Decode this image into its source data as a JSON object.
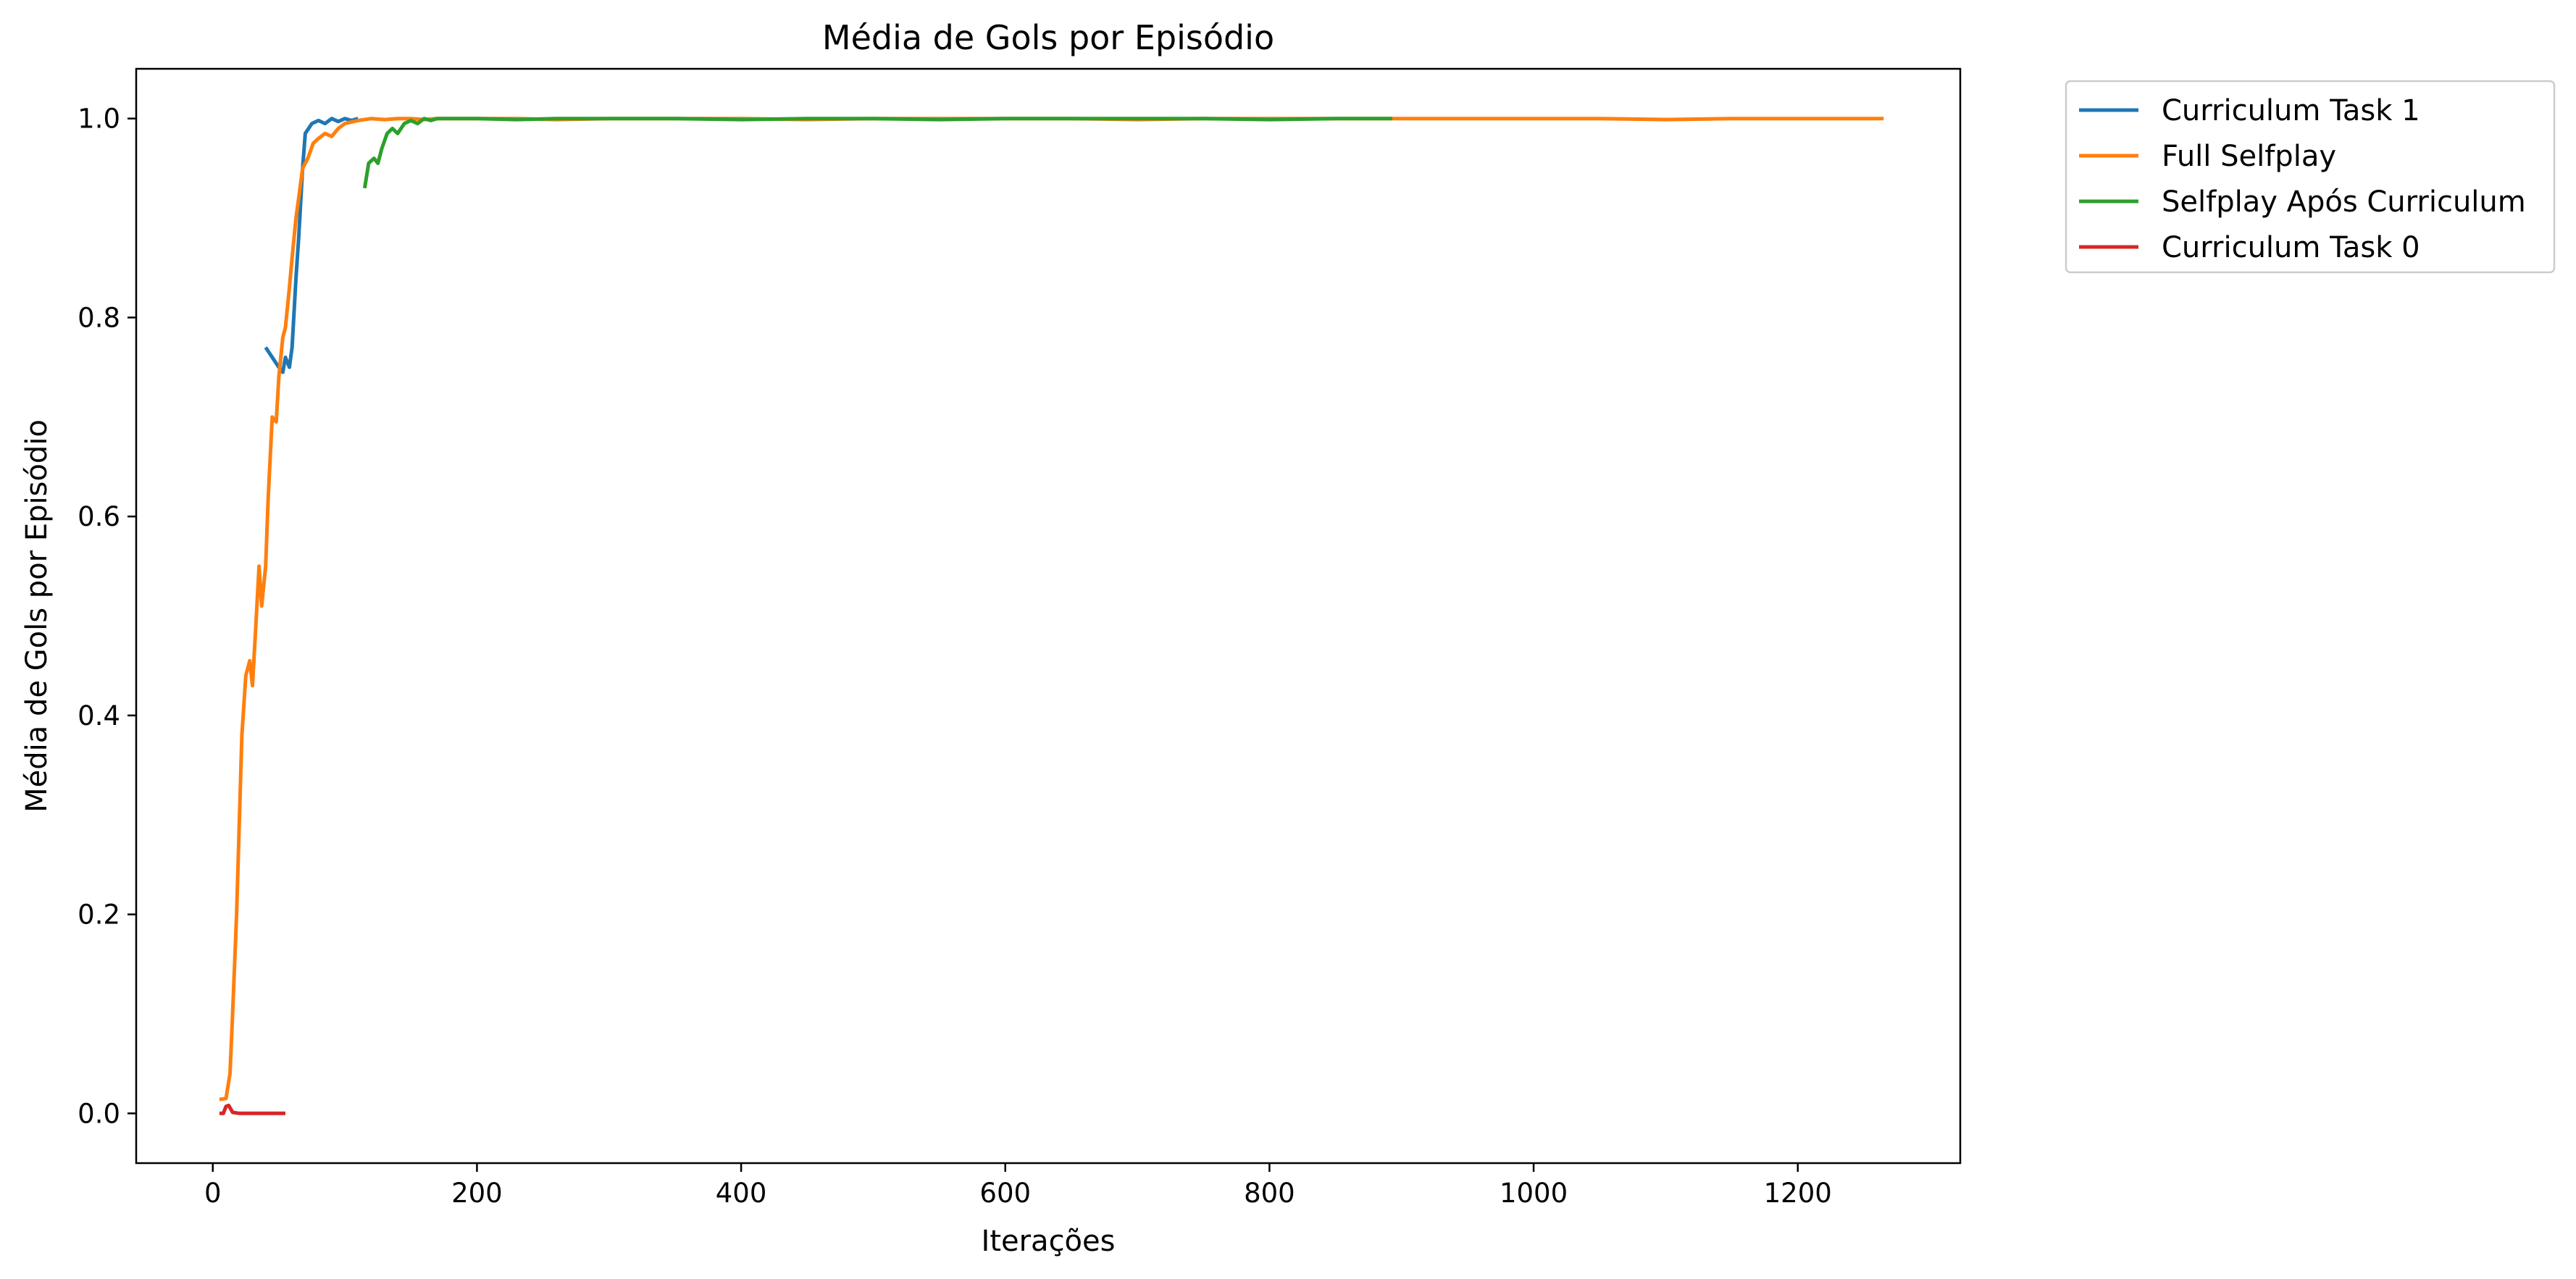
{
  "chart_data": {
    "type": "line",
    "title": "Média de Gols por Episódio",
    "xlabel": "Iterações",
    "ylabel": "Média de Gols por Episódio",
    "xlim": [
      -58,
      1323
    ],
    "ylim": [
      -0.05,
      1.05
    ],
    "xticks": [
      0,
      200,
      400,
      600,
      800,
      1000,
      1200
    ],
    "yticks": [
      0.0,
      0.2,
      0.4,
      0.6,
      0.8,
      1.0
    ],
    "xtick_labels": [
      "0",
      "200",
      "400",
      "600",
      "800",
      "1000",
      "1200"
    ],
    "ytick_labels": [
      "0.0",
      "0.2",
      "0.4",
      "0.6",
      "0.8",
      "1.0"
    ],
    "grid": false,
    "legend_position": "outside-top-right",
    "series": [
      {
        "name": "Curriculum Task 1",
        "color": "#1f77b4",
        "x": [
          40,
          45,
          50,
          53,
          55,
          58,
          60,
          63,
          65,
          68,
          70,
          75,
          80,
          85,
          90,
          95,
          100,
          105,
          110
        ],
        "y": [
          0.77,
          0.76,
          0.75,
          0.745,
          0.76,
          0.75,
          0.77,
          0.84,
          0.88,
          0.95,
          0.985,
          0.995,
          0.998,
          0.995,
          1.0,
          0.997,
          1.0,
          0.998,
          1.0
        ]
      },
      {
        "name": "Full Selfplay",
        "color": "#ff7f0e",
        "x": [
          5,
          10,
          13,
          15,
          18,
          22,
          25,
          28,
          30,
          33,
          35,
          37,
          40,
          42,
          45,
          48,
          50,
          53,
          55,
          58,
          60,
          63,
          65,
          68,
          72,
          76,
          80,
          85,
          90,
          95,
          100,
          110,
          120,
          130,
          140,
          150,
          160,
          170,
          180,
          200,
          230,
          260,
          300,
          350,
          400,
          450,
          500,
          550,
          600,
          650,
          700,
          750,
          800,
          850,
          900,
          950,
          1000,
          1050,
          1100,
          1150,
          1200,
          1265
        ],
        "y": [
          0.014,
          0.015,
          0.04,
          0.1,
          0.2,
          0.38,
          0.44,
          0.455,
          0.43,
          0.5,
          0.55,
          0.51,
          0.55,
          0.62,
          0.7,
          0.695,
          0.74,
          0.78,
          0.79,
          0.83,
          0.86,
          0.9,
          0.92,
          0.95,
          0.96,
          0.975,
          0.98,
          0.985,
          0.982,
          0.99,
          0.995,
          0.998,
          1.0,
          0.999,
          1.0,
          1.0,
          0.999,
          1.0,
          1.0,
          1.0,
          1.0,
          0.999,
          1.0,
          1.0,
          1.0,
          0.999,
          1.0,
          1.0,
          1.0,
          1.0,
          0.999,
          1.0,
          1.0,
          1.0,
          1.0,
          1.0,
          1.0,
          1.0,
          0.999,
          1.0,
          1.0,
          1.0
        ]
      },
      {
        "name": "Selfplay Após Curriculum",
        "color": "#2ca02c",
        "x": [
          115,
          118,
          122,
          125,
          128,
          132,
          136,
          140,
          145,
          150,
          155,
          160,
          165,
          170,
          180,
          200,
          230,
          260,
          300,
          350,
          400,
          450,
          500,
          550,
          600,
          650,
          700,
          750,
          800,
          850,
          893
        ],
        "y": [
          0.93,
          0.955,
          0.96,
          0.955,
          0.97,
          0.985,
          0.99,
          0.985,
          0.995,
          0.998,
          0.995,
          1.0,
          0.998,
          1.0,
          1.0,
          1.0,
          0.999,
          1.0,
          1.0,
          1.0,
          0.999,
          1.0,
          1.0,
          0.999,
          1.0,
          1.0,
          1.0,
          1.0,
          0.999,
          1.0,
          1.0
        ]
      },
      {
        "name": "Curriculum Task 0",
        "color": "#d62728",
        "x": [
          5,
          8,
          10,
          12,
          15,
          20,
          30,
          40,
          55
        ],
        "y": [
          0.0,
          0.0,
          0.007,
          0.008,
          0.001,
          0.0,
          0.0,
          0.0,
          0.0
        ]
      }
    ]
  }
}
